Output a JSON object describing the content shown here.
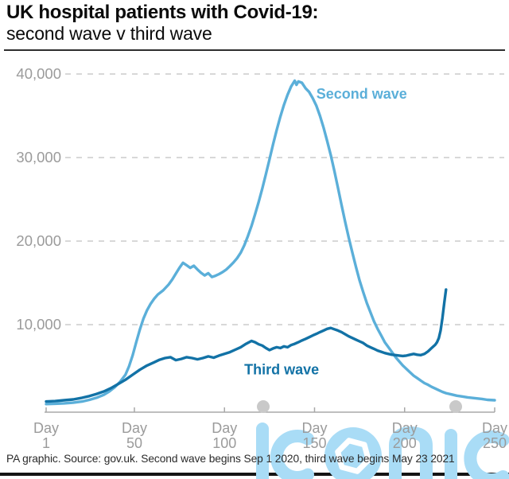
{
  "header": {
    "title": "UK hospital patients with Covid-19:",
    "subtitle": "second wave v third wave"
  },
  "footer": {
    "note": "PA graphic. Source: gov.uk. Second wave begins Sep 1 2020, third wave begins May 23 2021"
  },
  "watermark": {
    "text": "iconic"
  },
  "colors": {
    "title": "#0b0b0b",
    "rule_dark": "#2e2e2e",
    "axis_text": "#9b9b9b",
    "axis_line": "#a8a8a8",
    "gridline": "#cbcbcb",
    "watermark_blue": "#a9dcf6",
    "watermark_dot": "#c9c9c9"
  },
  "chart_data": {
    "type": "line",
    "title": "UK hospital patients with Covid-19: second wave v third wave",
    "xlabel_word": "Day",
    "xticks": [
      1,
      50,
      100,
      150,
      200,
      250
    ],
    "xlim": [
      1,
      250
    ],
    "ylim": [
      0,
      40000
    ],
    "yticks": [
      {
        "value": 10000,
        "label": "10,000"
      },
      {
        "value": 20000,
        "label": "20,000"
      },
      {
        "value": 30000,
        "label": "30,000"
      },
      {
        "value": 40000,
        "label": "40,000"
      }
    ],
    "grid": "dashed-horizontal",
    "legend_position": "inline-labels",
    "series": [
      {
        "name": "Second wave",
        "color": "#5bafd9",
        "label": {
          "text": "Second wave",
          "day": 151,
          "value": 37600
        },
        "points": [
          [
            1,
            500
          ],
          [
            6,
            530
          ],
          [
            11,
            580
          ],
          [
            16,
            660
          ],
          [
            21,
            800
          ],
          [
            25,
            1000
          ],
          [
            29,
            1250
          ],
          [
            33,
            1600
          ],
          [
            36,
            2000
          ],
          [
            39,
            2500
          ],
          [
            42,
            3150
          ],
          [
            45,
            4000
          ],
          [
            47,
            5000
          ],
          [
            49,
            6300
          ],
          [
            51,
            7900
          ],
          [
            53,
            9400
          ],
          [
            55,
            10700
          ],
          [
            57,
            11700
          ],
          [
            59,
            12500
          ],
          [
            61,
            13100
          ],
          [
            63,
            13600
          ],
          [
            66,
            14100
          ],
          [
            69,
            14800
          ],
          [
            71,
            15400
          ],
          [
            73,
            16100
          ],
          [
            75,
            16800
          ],
          [
            77,
            17400
          ],
          [
            79,
            17100
          ],
          [
            81,
            16800
          ],
          [
            83,
            17050
          ],
          [
            85,
            16600
          ],
          [
            87,
            16200
          ],
          [
            89,
            15900
          ],
          [
            91,
            16150
          ],
          [
            93,
            15700
          ],
          [
            95,
            15850
          ],
          [
            97,
            16050
          ],
          [
            99,
            16300
          ],
          [
            101,
            16600
          ],
          [
            103,
            17000
          ],
          [
            105,
            17450
          ],
          [
            107,
            17950
          ],
          [
            109,
            18600
          ],
          [
            111,
            19500
          ],
          [
            113,
            20600
          ],
          [
            115,
            21800
          ],
          [
            117,
            23200
          ],
          [
            119,
            24700
          ],
          [
            121,
            26300
          ],
          [
            123,
            28000
          ],
          [
            125,
            29800
          ],
          [
            127,
            31600
          ],
          [
            129,
            33300
          ],
          [
            131,
            34900
          ],
          [
            133,
            36300
          ],
          [
            135,
            37500
          ],
          [
            137,
            38500
          ],
          [
            139,
            39200
          ],
          [
            140,
            38700
          ],
          [
            141,
            39100
          ],
          [
            143,
            38950
          ],
          [
            145,
            38300
          ],
          [
            147,
            37850
          ],
          [
            149,
            37100
          ],
          [
            151,
            36200
          ],
          [
            153,
            35000
          ],
          [
            155,
            33600
          ],
          [
            157,
            32000
          ],
          [
            159,
            30300
          ],
          [
            161,
            28400
          ],
          [
            163,
            26400
          ],
          [
            165,
            24300
          ],
          [
            167,
            22300
          ],
          [
            169,
            20400
          ],
          [
            171,
            18600
          ],
          [
            173,
            16900
          ],
          [
            175,
            15300
          ],
          [
            177,
            13900
          ],
          [
            179,
            12600
          ],
          [
            181,
            11500
          ],
          [
            183,
            10400
          ],
          [
            185,
            9500
          ],
          [
            187,
            8700
          ],
          [
            189,
            7900
          ],
          [
            191,
            7300
          ],
          [
            193,
            6700
          ],
          [
            195,
            6100
          ],
          [
            197,
            5600
          ],
          [
            199,
            5100
          ],
          [
            201,
            4700
          ],
          [
            203,
            4300
          ],
          [
            205,
            3900
          ],
          [
            207,
            3600
          ],
          [
            209,
            3300
          ],
          [
            211,
            3000
          ],
          [
            213,
            2800
          ],
          [
            215,
            2550
          ],
          [
            217,
            2350
          ],
          [
            219,
            2150
          ],
          [
            221,
            1950
          ],
          [
            223,
            1800
          ],
          [
            226,
            1650
          ],
          [
            229,
            1500
          ],
          [
            232,
            1400
          ],
          [
            235,
            1300
          ],
          [
            239,
            1200
          ],
          [
            243,
            1100
          ],
          [
            246,
            1000
          ],
          [
            250,
            950
          ]
        ]
      },
      {
        "name": "Third wave",
        "color": "#1272a6",
        "label": {
          "text": "Third wave",
          "day": 111,
          "value": 4600
        },
        "points": [
          [
            1,
            800
          ],
          [
            6,
            850
          ],
          [
            11,
            950
          ],
          [
            16,
            1050
          ],
          [
            21,
            1250
          ],
          [
            25,
            1450
          ],
          [
            29,
            1700
          ],
          [
            33,
            2000
          ],
          [
            37,
            2400
          ],
          [
            41,
            2900
          ],
          [
            45,
            3400
          ],
          [
            49,
            4000
          ],
          [
            53,
            4600
          ],
          [
            57,
            5100
          ],
          [
            61,
            5500
          ],
          [
            64,
            5800
          ],
          [
            67,
            6000
          ],
          [
            70,
            6100
          ],
          [
            73,
            5750
          ],
          [
            76,
            5900
          ],
          [
            79,
            6100
          ],
          [
            82,
            6000
          ],
          [
            85,
            5850
          ],
          [
            88,
            6000
          ],
          [
            91,
            6200
          ],
          [
            94,
            6050
          ],
          [
            97,
            6300
          ],
          [
            100,
            6500
          ],
          [
            103,
            6700
          ],
          [
            106,
            7000
          ],
          [
            109,
            7300
          ],
          [
            112,
            7700
          ],
          [
            115,
            8050
          ],
          [
            117,
            7900
          ],
          [
            119,
            7650
          ],
          [
            121,
            7500
          ],
          [
            123,
            7200
          ],
          [
            125,
            6950
          ],
          [
            127,
            7150
          ],
          [
            129,
            7300
          ],
          [
            131,
            7200
          ],
          [
            133,
            7400
          ],
          [
            135,
            7300
          ],
          [
            137,
            7550
          ],
          [
            139,
            7700
          ],
          [
            141,
            7900
          ],
          [
            143,
            8100
          ],
          [
            145,
            8300
          ],
          [
            147,
            8500
          ],
          [
            149,
            8700
          ],
          [
            151,
            8900
          ],
          [
            153,
            9100
          ],
          [
            155,
            9300
          ],
          [
            157,
            9500
          ],
          [
            159,
            9600
          ],
          [
            161,
            9450
          ],
          [
            163,
            9300
          ],
          [
            165,
            9100
          ],
          [
            167,
            8850
          ],
          [
            169,
            8600
          ],
          [
            171,
            8400
          ],
          [
            173,
            8200
          ],
          [
            175,
            8000
          ],
          [
            177,
            7800
          ],
          [
            179,
            7500
          ],
          [
            181,
            7300
          ],
          [
            183,
            7100
          ],
          [
            185,
            6900
          ],
          [
            187,
            6750
          ],
          [
            189,
            6600
          ],
          [
            191,
            6500
          ],
          [
            193,
            6400
          ],
          [
            195,
            6350
          ],
          [
            197,
            6300
          ],
          [
            199,
            6250
          ],
          [
            201,
            6300
          ],
          [
            203,
            6400
          ],
          [
            205,
            6500
          ],
          [
            207,
            6400
          ],
          [
            209,
            6350
          ],
          [
            211,
            6500
          ],
          [
            213,
            6800
          ],
          [
            215,
            7200
          ],
          [
            217,
            7600
          ],
          [
            218,
            7900
          ],
          [
            219,
            8400
          ],
          [
            220,
            9300
          ],
          [
            221,
            10800
          ],
          [
            222,
            12600
          ],
          [
            223,
            14200
          ]
        ]
      }
    ]
  }
}
